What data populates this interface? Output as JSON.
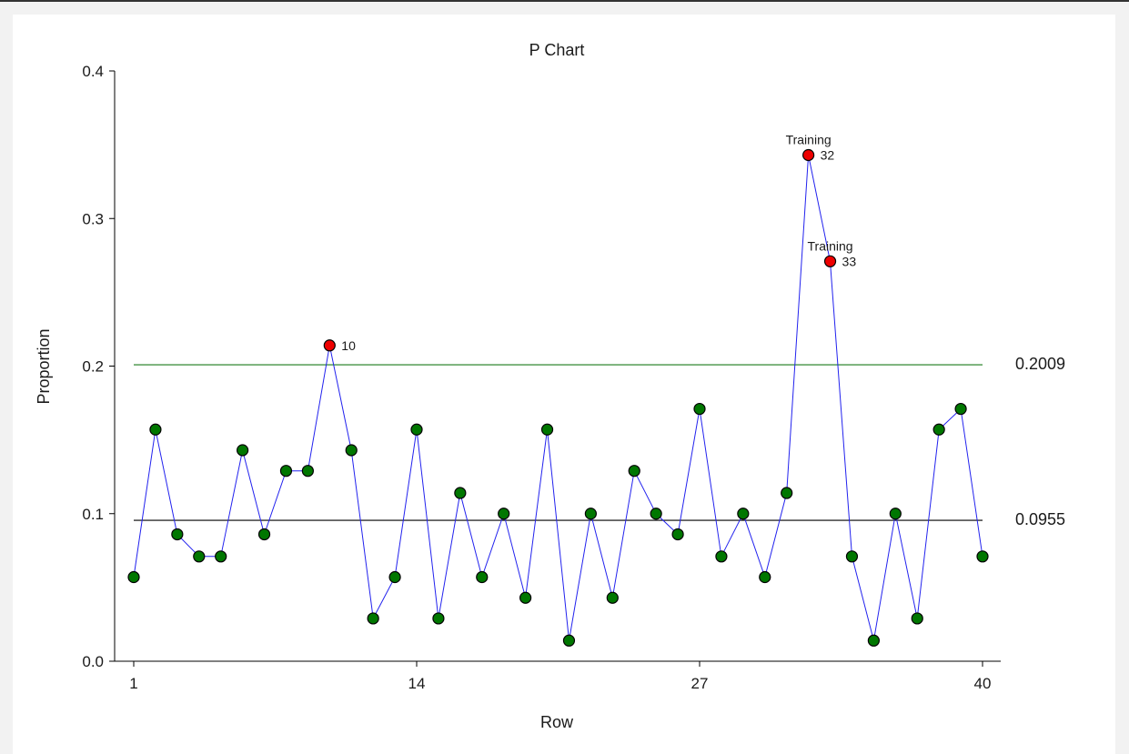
{
  "chart_data": {
    "type": "line",
    "title": "P Chart",
    "xlabel": "Row",
    "ylabel": "Proportion",
    "xlim": [
      1,
      40
    ],
    "ylim": [
      0,
      0.4
    ],
    "x_ticks": [
      1,
      14,
      27,
      40
    ],
    "y_ticks": [
      "0.0",
      "0.1",
      "0.2",
      "0.3",
      "0.4"
    ],
    "center_line": {
      "value": 0.0955,
      "label": "0.0955",
      "color": "#000000"
    },
    "upper_limit": {
      "value": 0.2009,
      "label": "0.2009",
      "color": "#1a7a1a"
    },
    "series": [
      {
        "line_color": "#2222ee",
        "point_color": "#007700",
        "out_color": "#ee0000",
        "x": [
          1,
          2,
          3,
          4,
          5,
          6,
          7,
          8,
          9,
          10,
          11,
          12,
          13,
          14,
          15,
          16,
          17,
          18,
          19,
          20,
          21,
          22,
          23,
          24,
          25,
          26,
          27,
          28,
          29,
          30,
          31,
          32,
          33,
          34,
          35,
          36,
          37,
          38,
          39,
          40
        ],
        "values": [
          0.057,
          0.157,
          0.086,
          0.071,
          0.071,
          0.143,
          0.086,
          0.129,
          0.129,
          0.214,
          0.143,
          0.029,
          0.057,
          0.157,
          0.029,
          0.114,
          0.057,
          0.1,
          0.043,
          0.157,
          0.014,
          0.1,
          0.043,
          0.129,
          0.1,
          0.086,
          0.171,
          0.071,
          0.1,
          0.057,
          0.114,
          0.343,
          0.271,
          0.071,
          0.014,
          0.1,
          0.029,
          0.157,
          0.171,
          0.071
        ]
      }
    ],
    "out_of_control": [
      {
        "x": 10,
        "label": "10",
        "note": ""
      },
      {
        "x": 32,
        "label": "32",
        "note": "Training"
      },
      {
        "x": 33,
        "label": "33",
        "note": "Training"
      }
    ]
  }
}
